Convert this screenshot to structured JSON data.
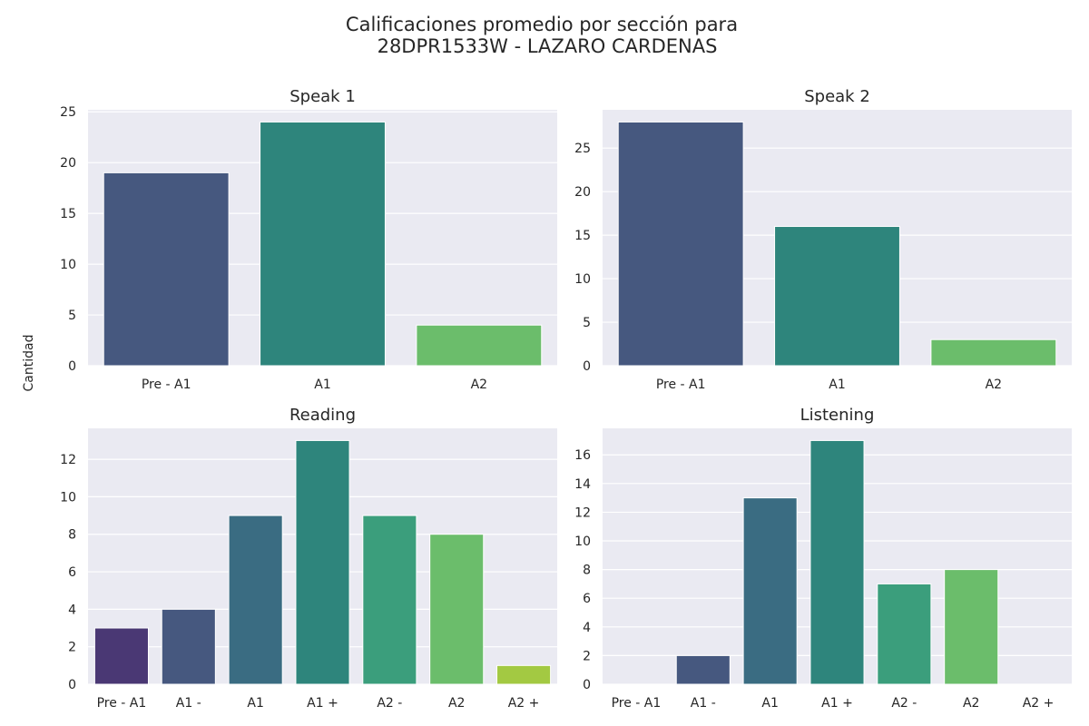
{
  "figure": {
    "title_line1": "Calificaciones promedio por sección para",
    "title_line2": "28DPR1533W - LAZARO CARDENAS",
    "ylabel": "Cantidad"
  },
  "colors": {
    "background": "#eaeaf2",
    "grid": "#ffffff",
    "text": "#262626"
  },
  "chart_data": [
    {
      "type": "bar",
      "title": "Speak 1",
      "categories": [
        "Pre - A1",
        "A1",
        "A2"
      ],
      "values": [
        19,
        24,
        4
      ],
      "colors": [
        "#46587f",
        "#2e857c",
        "#6bbd6b"
      ],
      "ylim": [
        0,
        25.2
      ],
      "yticks": [
        0,
        5,
        10,
        15,
        20,
        25
      ],
      "grid": true
    },
    {
      "type": "bar",
      "title": "Speak 2",
      "categories": [
        "Pre - A1",
        "A1",
        "A2"
      ],
      "values": [
        28,
        16,
        3
      ],
      "colors": [
        "#46587f",
        "#2e857c",
        "#6bbd6b"
      ],
      "ylim": [
        0,
        29.4
      ],
      "yticks": [
        0,
        5,
        10,
        15,
        20,
        25
      ],
      "grid": true
    },
    {
      "type": "bar",
      "title": "Reading",
      "categories": [
        "Pre - A1",
        "A1 -",
        "A1",
        "A1 +",
        "A2 -",
        "A2",
        "A2 +"
      ],
      "values": [
        3,
        4,
        9,
        13,
        9,
        8,
        1
      ],
      "colors": [
        "#4a3874",
        "#46587f",
        "#3a6c82",
        "#2e857c",
        "#3b9e7c",
        "#6bbd6b",
        "#a3c942"
      ],
      "ylim": [
        0,
        13.65
      ],
      "yticks": [
        0,
        2,
        4,
        6,
        8,
        10,
        12
      ],
      "grid": true
    },
    {
      "type": "bar",
      "title": "Listening",
      "categories": [
        "Pre - A1",
        "A1 -",
        "A1",
        "A1 +",
        "A2 -",
        "A2",
        "A2 +"
      ],
      "values": [
        0,
        2,
        13,
        17,
        7,
        8,
        0
      ],
      "colors": [
        "#4a3874",
        "#46587f",
        "#3a6c82",
        "#2e857c",
        "#3b9e7c",
        "#6bbd6b",
        "#a3c942"
      ],
      "ylim": [
        0,
        17.85
      ],
      "yticks": [
        0,
        2,
        4,
        6,
        8,
        10,
        12,
        14,
        16
      ],
      "grid": true
    }
  ]
}
